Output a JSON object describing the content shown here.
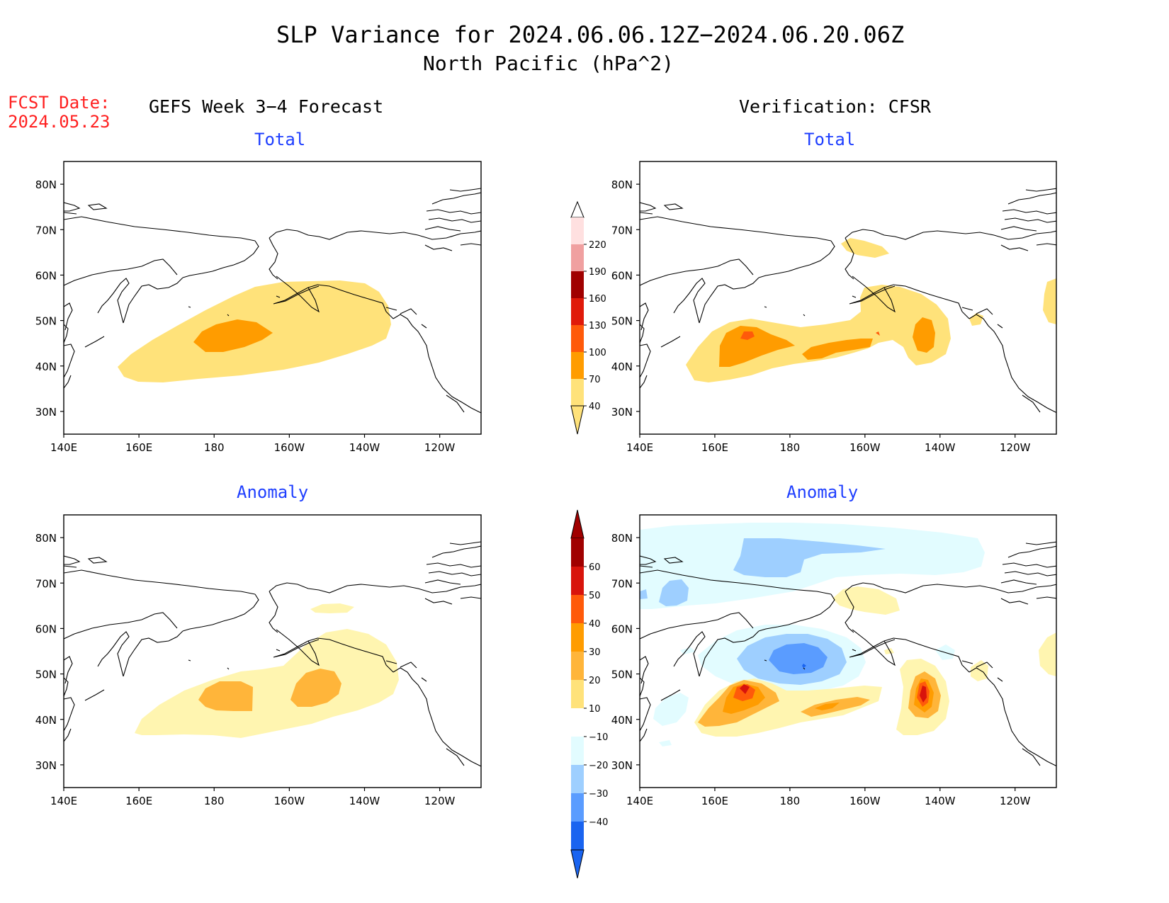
{
  "title": {
    "line1": "SLP Variance for 2024.06.06.12Z−2024.06.20.06Z",
    "line2": "North Pacific (hPa^2)"
  },
  "fcst_date": {
    "label": "FCST Date:",
    "value": "2024.05.23"
  },
  "columns": {
    "left": "GEFS Week 3−4 Forecast",
    "right": "Verification: CFSR"
  },
  "panel_titles": {
    "total": "Total",
    "anomaly": "Anomaly"
  },
  "axes": {
    "lat_labels": [
      "80N",
      "70N",
      "60N",
      "50N",
      "40N",
      "30N"
    ],
    "lat_values": [
      80,
      70,
      60,
      50,
      40,
      30
    ],
    "lon_labels": [
      "140E",
      "160E",
      "180",
      "160W",
      "140W",
      "120W"
    ],
    "lon_values": [
      140,
      160,
      180,
      200,
      220,
      240
    ],
    "lon_range": [
      140,
      251
    ],
    "lat_range": [
      25,
      85
    ]
  },
  "colors": {
    "title_blue": "#1f3fff",
    "fcst_red": "#ff2020",
    "c_pos10": "#fff5b0",
    "c_pos20": "#ffe27a",
    "c_pos30": "#ffb53a",
    "c_pos40": "#ff9c00",
    "c_pos50": "#ff5a0a",
    "c_pos60": "#d8140c",
    "c_pos70": "#a00000",
    "c_neg10": "#e2fcff",
    "c_neg20": "#9ecfff",
    "c_neg30": "#5a9cff",
    "c_neg40": "#1a64f0",
    "c_tot40": "#ffe27a",
    "c_tot70": "#ff9c00",
    "c_tot100": "#ff5a0a",
    "c_tot130": "#e01a0a",
    "c_tot160": "#a00000",
    "c_tot190": "#f0a0a0",
    "c_tot220": "#ffe0e0"
  },
  "colorbar_total": {
    "labels": [
      "220",
      "190",
      "160",
      "130",
      "100",
      "70",
      "40"
    ],
    "colors": [
      "#ffe0e0",
      "#f0a0a0",
      "#a00000",
      "#e01a0a",
      "#ff5a0a",
      "#ff9c00",
      "#ffe27a"
    ]
  },
  "colorbar_anomaly": {
    "labels": [
      "60",
      "50",
      "40",
      "30",
      "20",
      "10",
      "−10",
      "−20",
      "−30",
      "−40"
    ],
    "colors": [
      "#a00000",
      "#d8140c",
      "#ff5a0a",
      "#ff9c00",
      "#ffb53a",
      "#ffe27a",
      "#ffffff",
      "#e2fcff",
      "#9ecfff",
      "#5a9cff",
      "#1a64f0"
    ]
  }
}
